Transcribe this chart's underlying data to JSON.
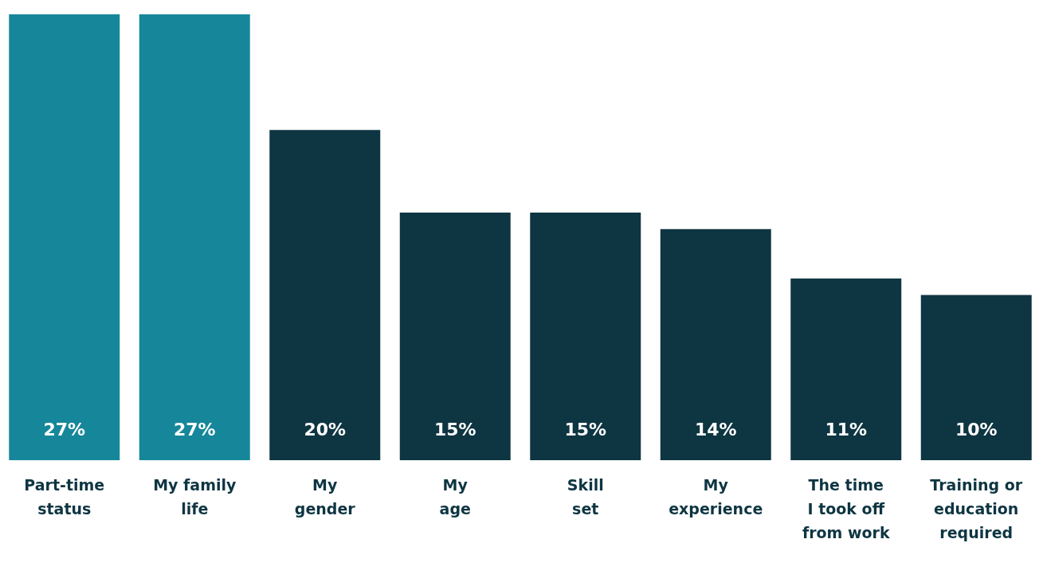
{
  "chart_data": {
    "type": "bar",
    "categories": [
      "Part-time\nstatus",
      "My family\nlife",
      "My\ngender",
      "My\nage",
      "Skill\nset",
      "My\nexperience",
      "The time\nI took off\nfrom work",
      "Training or\neducation\nrequired"
    ],
    "values": [
      27,
      27,
      20,
      15,
      15,
      14,
      11,
      10
    ],
    "value_labels": [
      "27%",
      "27%",
      "20%",
      "15%",
      "15%",
      "14%",
      "11%",
      "10%"
    ],
    "colors": [
      "#16879a",
      "#16879a",
      "#0e3542",
      "#0e3542",
      "#0e3542",
      "#0e3542",
      "#0e3542",
      "#0e3542"
    ]
  }
}
